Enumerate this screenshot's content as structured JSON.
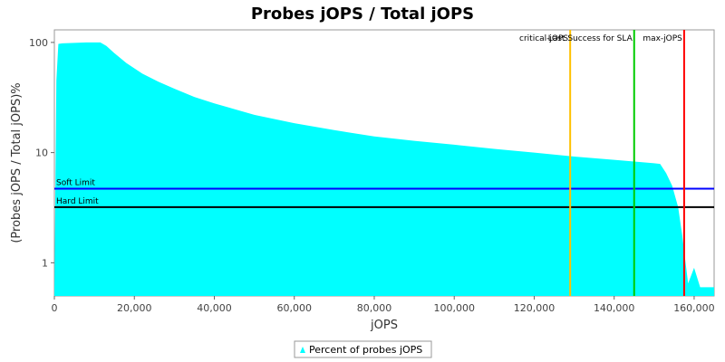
{
  "chart_data": {
    "type": "area",
    "title": "Probes jOPS / Total jOPS",
    "xlabel": "jOPS",
    "ylabel": "(Probes jOPS / Total jOPS)%",
    "y_scale": "log",
    "xlim": [
      0,
      165000
    ],
    "ylim": [
      0.5,
      130
    ],
    "x_ticks": [
      "0",
      "20,000",
      "40,000",
      "60,000",
      "80,000",
      "100,000",
      "120,000",
      "140,000",
      "160,000"
    ],
    "y_ticks": [
      "1",
      "10",
      "100"
    ],
    "x_tick_values": [
      0,
      20000,
      40000,
      60000,
      80000,
      100000,
      120000,
      140000,
      160000
    ],
    "y_tick_values": [
      1,
      10,
      100
    ],
    "series": [
      {
        "name": "Percent of probes jOPS",
        "color": "#00ffff",
        "x": [
          0,
          500,
          1000,
          2000,
          5000,
          8000,
          11500,
          13000,
          15000,
          18000,
          22000,
          26000,
          30000,
          35000,
          40000,
          50000,
          60000,
          70000,
          80000,
          90000,
          100000,
          110000,
          120000,
          130000,
          140000,
          145000,
          150000,
          151500,
          153000,
          154500,
          156000,
          157000,
          158500,
          160000,
          161500,
          163000,
          165000
        ],
        "y": [
          0,
          45,
          97,
          98,
          99,
          100,
          100,
          93,
          80,
          65,
          52,
          44,
          38,
          32,
          28,
          22,
          18.5,
          16,
          14,
          12.8,
          11.8,
          10.8,
          10,
          9.2,
          8.6,
          8.3,
          8,
          7.9,
          6.5,
          5,
          3.2,
          1.8,
          0.65,
          0.9,
          0.6,
          0.6,
          0.6
        ]
      }
    ],
    "horizontal_lines": [
      {
        "label": "Soft Limit",
        "y": 4.7,
        "color": "#0000ff"
      },
      {
        "label": "Hard Limit",
        "y": 3.2,
        "color": "#000000"
      }
    ],
    "vertical_lines": [
      {
        "label": "critical-jOPS",
        "x": 129000,
        "color": "#ffc000"
      },
      {
        "label": "Last Success for SLA",
        "x": 145000,
        "color": "#00cc00"
      },
      {
        "label": "max-jOPS",
        "x": 157500,
        "color": "#ff0000"
      }
    ],
    "legend_position": "bottom-center",
    "grid": false
  }
}
